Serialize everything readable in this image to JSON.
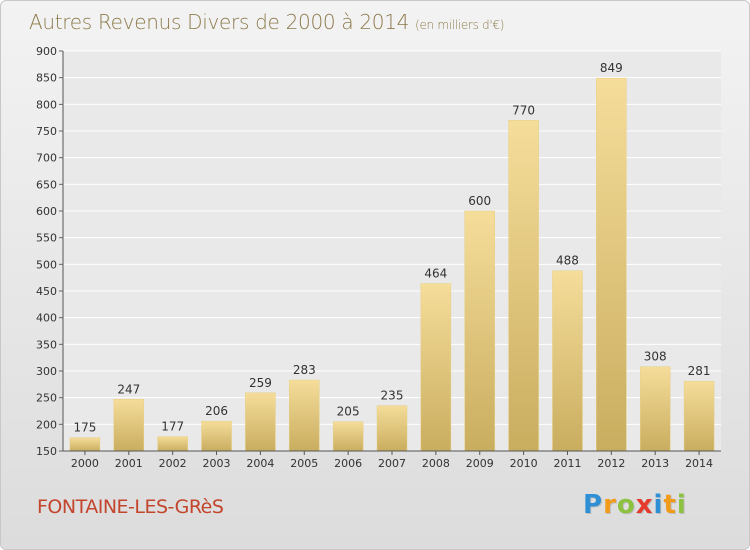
{
  "header": {
    "title": "Autres Revenus Divers de 2000 à 2014",
    "subtitle": "(en milliers d'€)"
  },
  "footer": {
    "city": "FONTAINE-LES-GRèS",
    "logo": {
      "letters": [
        "P",
        "r",
        "o",
        "x",
        "i",
        "t",
        "i"
      ],
      "colors": [
        "#2e8fd4",
        "#f29a1a",
        "#8cc23f",
        "#e53b2d",
        "#2e8fd4",
        "#f29a1a",
        "#8cc23f"
      ]
    }
  },
  "colors": {
    "bar_top": "#f5dd9a",
    "bar_bottom": "#c9ad5f",
    "title": "#8c7a4a",
    "city": "#c2452c"
  },
  "chart_data": {
    "type": "bar",
    "title": "Autres Revenus Divers de 2000 à 2014",
    "subtitle": "(en milliers d'€)",
    "categories": [
      "2000",
      "2001",
      "2002",
      "2003",
      "2004",
      "2005",
      "2006",
      "2007",
      "2008",
      "2009",
      "2010",
      "2011",
      "2012",
      "2013",
      "2014"
    ],
    "values": [
      175,
      247,
      177,
      206,
      259,
      283,
      205,
      235,
      464,
      600,
      770,
      488,
      849,
      308,
      281
    ],
    "ylim": [
      150,
      900
    ],
    "yticks": [
      150,
      200,
      250,
      300,
      350,
      400,
      450,
      500,
      550,
      600,
      650,
      700,
      750,
      800,
      850,
      900
    ],
    "xlabel": "",
    "ylabel": "",
    "grid": true,
    "legend": "none"
  }
}
